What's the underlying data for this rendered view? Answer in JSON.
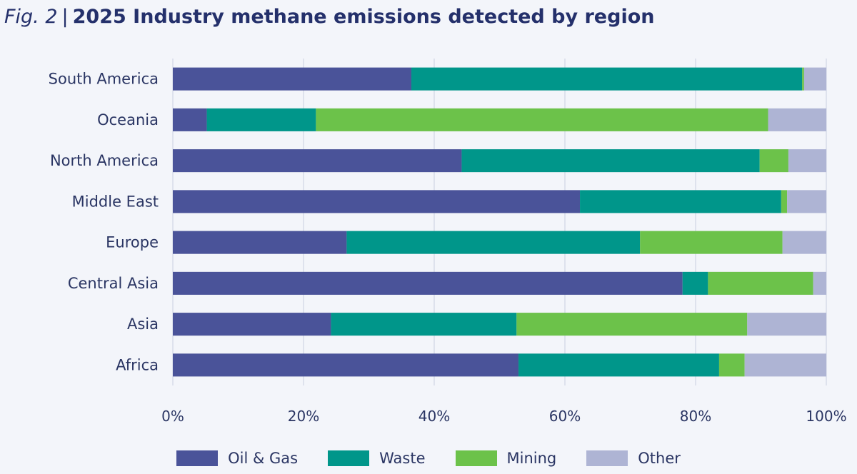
{
  "header": {
    "fig_label": "Fig. 2",
    "separator": "|",
    "title": "2025 Industry methane emissions detected by region"
  },
  "colors": {
    "Oil & Gas": "#4a5399",
    "Waste": "#00968a",
    "Mining": "#6cc24a",
    "Other": "#aeb4d4",
    "gridline": "#c9cee0",
    "axis_text": "#2a3563"
  },
  "chart_data": {
    "type": "bar",
    "orientation": "horizontal",
    "stacked": true,
    "title": "2025 Industry methane emissions detected by region",
    "xlabel": "",
    "ylabel": "",
    "xlim": [
      0,
      100
    ],
    "xticks": [
      0,
      20,
      40,
      60,
      80,
      100
    ],
    "tick_suffix": "%",
    "grid": "vertical",
    "legend_position": "bottom",
    "categories": [
      "South America",
      "Oceania",
      "North America",
      "Middle East",
      "Europe",
      "Central Asia",
      "Asia",
      "Africa"
    ],
    "series": [
      {
        "name": "Oil & Gas",
        "values": [
          36.5,
          5.2,
          44.2,
          62.3,
          26.6,
          78.0,
          24.2,
          52.9
        ]
      },
      {
        "name": "Waste",
        "values": [
          59.8,
          16.7,
          45.6,
          30.8,
          44.9,
          3.9,
          28.4,
          30.7
        ]
      },
      {
        "name": "Mining",
        "values": [
          0.3,
          69.2,
          4.4,
          0.9,
          21.8,
          16.1,
          35.3,
          3.9
        ]
      },
      {
        "name": "Other",
        "values": [
          3.4,
          8.9,
          5.8,
          6.0,
          6.7,
          2.0,
          12.1,
          12.5
        ]
      }
    ]
  }
}
